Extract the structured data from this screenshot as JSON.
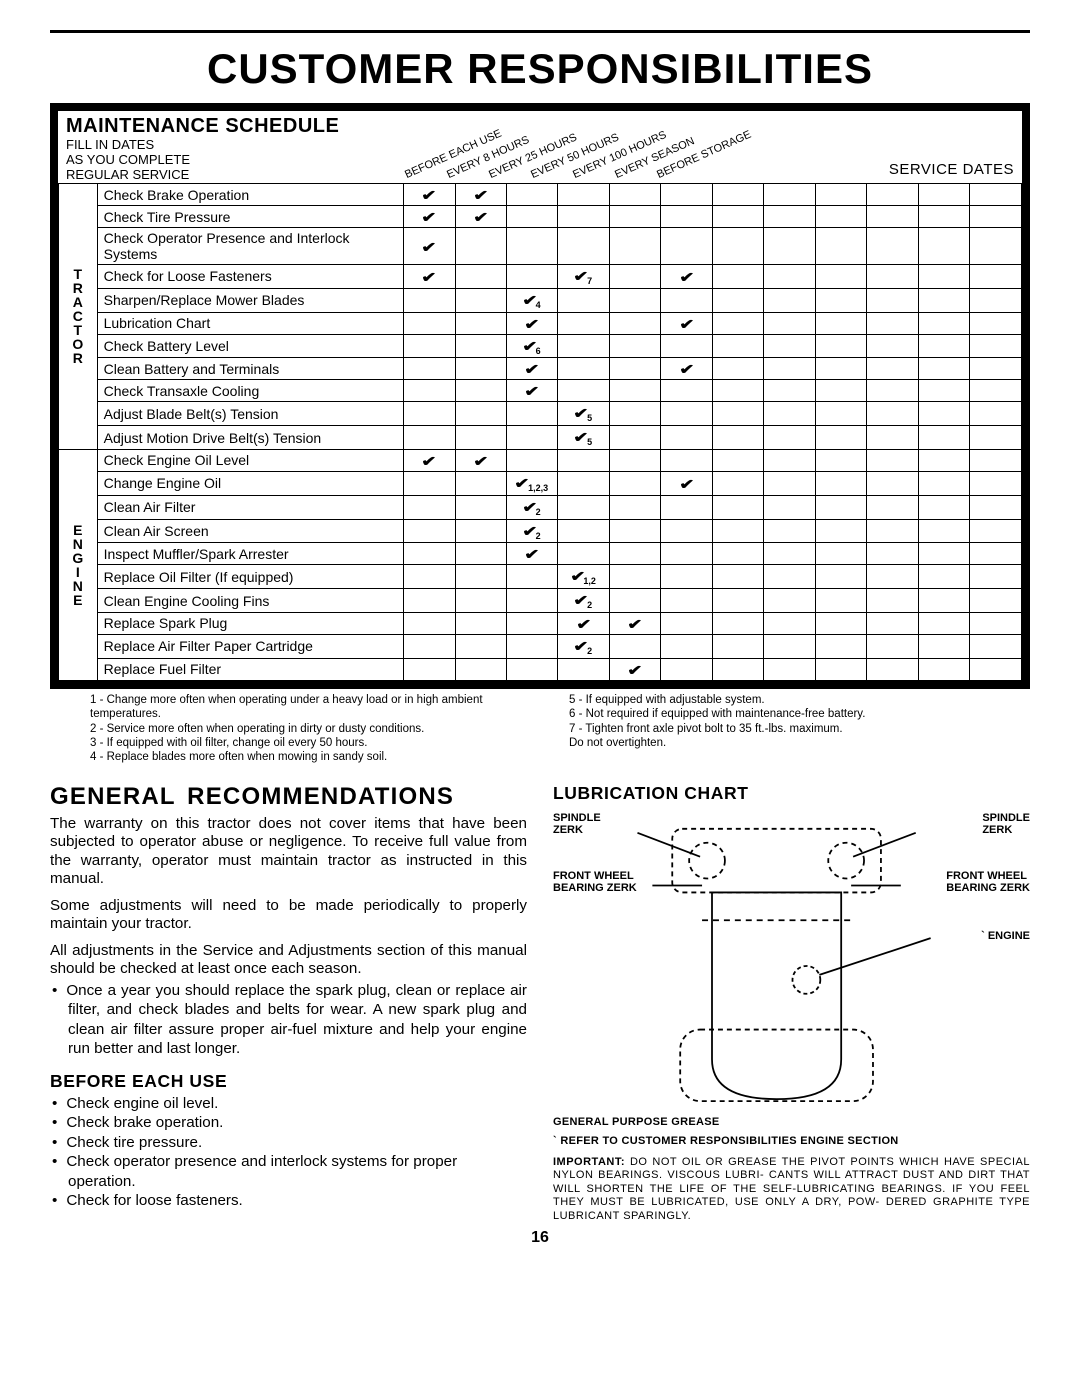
{
  "page": {
    "title": "CUSTOMER RESPONSIBILITIES",
    "number": "16"
  },
  "schedule": {
    "title": "MAINTENANCE SCHEDULE",
    "sub1": "FILL IN DATES",
    "sub2": "AS YOU COMPLETE",
    "sub3": "REGULAR SERVICE",
    "service_dates": "SERVICE DATES",
    "columns": [
      "BEFORE EACH USE",
      "EVERY 8 HOURS",
      "EVERY 25 HOURS",
      "EVERY 50 HOURS",
      "EVERY 100 HOURS",
      "EVERY SEASON",
      "BEFORE STORAGE"
    ],
    "categories": [
      {
        "label": "TRACTOR",
        "rows": [
          {
            "task": "Check Brake Operation",
            "marks": [
              "✔",
              "✔",
              "",
              "",
              "",
              "",
              ""
            ],
            "sub": [
              "",
              "",
              "",
              "",
              "",
              "",
              ""
            ]
          },
          {
            "task": "Check Tire Pressure",
            "marks": [
              "✔",
              "✔",
              "",
              "",
              "",
              "",
              ""
            ],
            "sub": [
              "",
              "",
              "",
              "",
              "",
              "",
              ""
            ]
          },
          {
            "task": "Check Operator Presence and Interlock Systems",
            "marks": [
              "✔",
              "",
              "",
              "",
              "",
              "",
              ""
            ],
            "sub": [
              "",
              "",
              "",
              "",
              "",
              "",
              ""
            ]
          },
          {
            "task": "Check for Loose Fasteners",
            "marks": [
              "✔",
              "",
              "",
              "✔",
              "",
              "✔",
              ""
            ],
            "sub": [
              "",
              "",
              "",
              "7",
              "",
              "",
              ""
            ]
          },
          {
            "task": "Sharpen/Replace Mower Blades",
            "marks": [
              "",
              "",
              "✔",
              "",
              "",
              "",
              ""
            ],
            "sub": [
              "",
              "",
              "4",
              "",
              "",
              "",
              ""
            ]
          },
          {
            "task": "Lubrication Chart",
            "marks": [
              "",
              "",
              "✔",
              "",
              "",
              "✔",
              ""
            ],
            "sub": [
              "",
              "",
              "",
              "",
              "",
              "",
              ""
            ]
          },
          {
            "task": "Check Battery Level",
            "marks": [
              "",
              "",
              "✔",
              "",
              "",
              "",
              ""
            ],
            "sub": [
              "",
              "",
              "6",
              "",
              "",
              "",
              ""
            ]
          },
          {
            "task": "Clean Battery and Terminals",
            "marks": [
              "",
              "",
              "✔",
              "",
              "",
              "✔",
              ""
            ],
            "sub": [
              "",
              "",
              "",
              "",
              "",
              "",
              ""
            ]
          },
          {
            "task": "Check Transaxle Cooling",
            "marks": [
              "",
              "",
              "✔",
              "",
              "",
              "",
              ""
            ],
            "sub": [
              "",
              "",
              "",
              "",
              "",
              "",
              ""
            ]
          },
          {
            "task": "Adjust Blade Belt(s) Tension",
            "marks": [
              "",
              "",
              "",
              "✔",
              "",
              "",
              ""
            ],
            "sub": [
              "",
              "",
              "",
              "5",
              "",
              "",
              ""
            ]
          },
          {
            "task": "Adjust Motion Drive Belt(s) Tension",
            "marks": [
              "",
              "",
              "",
              "✔",
              "",
              "",
              ""
            ],
            "sub": [
              "",
              "",
              "",
              "5",
              "",
              "",
              ""
            ]
          }
        ]
      },
      {
        "label": "ENGINE",
        "rows": [
          {
            "task": "Check Engine Oil Level",
            "marks": [
              "✔",
              "✔",
              "",
              "",
              "",
              "",
              ""
            ],
            "sub": [
              "",
              "",
              "",
              "",
              "",
              "",
              ""
            ]
          },
          {
            "task": "Change Engine Oil",
            "marks": [
              "",
              "",
              "✔",
              "",
              "",
              "✔",
              ""
            ],
            "sub": [
              "",
              "",
              "1,2,3",
              "",
              "",
              "",
              ""
            ]
          },
          {
            "task": "Clean Air Filter",
            "marks": [
              "",
              "",
              "✔",
              "",
              "",
              "",
              ""
            ],
            "sub": [
              "",
              "",
              "2",
              "",
              "",
              "",
              ""
            ]
          },
          {
            "task": "Clean Air Screen",
            "marks": [
              "",
              "",
              "✔",
              "",
              "",
              "",
              ""
            ],
            "sub": [
              "",
              "",
              "2",
              "",
              "",
              "",
              ""
            ]
          },
          {
            "task": "Inspect Muffler/Spark Arrester",
            "marks": [
              "",
              "",
              "✔",
              "",
              "",
              "",
              ""
            ],
            "sub": [
              "",
              "",
              "",
              "",
              "",
              "",
              ""
            ]
          },
          {
            "task": "Replace Oil Filter (If equipped)",
            "marks": [
              "",
              "",
              "",
              "✔",
              "",
              "",
              ""
            ],
            "sub": [
              "",
              "",
              "",
              "1,2",
              "",
              "",
              ""
            ]
          },
          {
            "task": "Clean Engine Cooling Fins",
            "marks": [
              "",
              "",
              "",
              "✔",
              "",
              "",
              ""
            ],
            "sub": [
              "",
              "",
              "",
              "2",
              "",
              "",
              ""
            ]
          },
          {
            "task": "Replace Spark Plug",
            "marks": [
              "",
              "",
              "",
              "✔",
              "✔",
              "",
              ""
            ],
            "sub": [
              "",
              "",
              "",
              "",
              "",
              "",
              ""
            ]
          },
          {
            "task": "Replace Air Filter Paper Cartridge",
            "marks": [
              "",
              "",
              "",
              "✔",
              "",
              "",
              ""
            ],
            "sub": [
              "",
              "",
              "",
              "2",
              "",
              "",
              ""
            ]
          },
          {
            "task": "Replace Fuel Filter",
            "marks": [
              "",
              "",
              "",
              "",
              "✔",
              "",
              ""
            ],
            "sub": [
              "",
              "",
              "",
              "",
              "",
              "",
              ""
            ]
          }
        ]
      }
    ]
  },
  "footnotes": {
    "left": [
      "1 - Change more often when operating under a heavy load or in high ambient temperatures.",
      "2 - Service more often when operating in dirty or dusty conditions.",
      "3 - If equipped with oil filter, change oil every 50 hours.",
      "4 - Replace blades more often when mowing in sandy soil."
    ],
    "right": [
      "5 - If equipped with adjustable system.",
      "6 - Not required if equipped with maintenance-free battery.",
      "7 - Tighten front axle pivot bolt to 35 ft.-lbs. maximum.",
      "     Do not overtighten."
    ]
  },
  "general": {
    "title": "GENERAL  RECOMMENDATIONS",
    "p1": "The warranty on this tractor does not cover items that have been subjected to operator abuse or negligence.  To receive full value from the warranty, operator must maintain tractor as instructed in this manual.",
    "p2": "Some adjustments will need to be made periodically to properly maintain your tractor.",
    "p3": "All adjustments in the Service and Adjustments section of this manual should be checked at least once each season.",
    "bullet": "Once a year you should replace the spark plug, clean or replace air filter, and check blades and belts for wear.  A new spark plug and clean air filter assure proper air-fuel mixture and help your engine run better and last longer."
  },
  "before": {
    "title": "BEFORE EACH USE",
    "items": [
      "Check engine oil level.",
      "Check brake operation.",
      "Check tire pressure.",
      "Check operator presence and interlock systems for proper operation.",
      "Check for loose fasteners."
    ]
  },
  "lube": {
    "title": "LUBRICATION  CHART",
    "labels": {
      "spin_l": "SPINDLE\nZERK",
      "spin_r": "SPINDLE\nZERK",
      "fw_l": "FRONT  WHEEL\nBEARING  ZERK",
      "fw_r": "FRONT  WHEEL\nBEARING  ZERK",
      "engine": "ENGINE"
    },
    "note1": "GENERAL  PURPOSE  GREASE",
    "note2": "` REFER  TO  CUSTOMER  RESPONSIBILITIES   ENGINE SECTION",
    "important_label": "IMPORTANT:",
    "important": "DO NOT OIL OR GREASE THE PIVOT POINTS WHICH HAVE SPECIAL NYLON BEARINGS.  VISCOUS LUBRI- CANTS WILL ATTRACT DUST AND DIRT THAT WILL SHORTEN THE LIFE OF THE SELF-LUBRICATING BEARINGS.  IF YOU FEEL THEY MUST BE LUBRICATED, USE ONLY A DRY, POW- DERED GRAPHITE TYPE LUBRICANT SPARINGLY."
  },
  "style": {
    "page_bg": "#ffffff",
    "text_color": "#000000",
    "border_color": "#000000",
    "table_border_width": 1,
    "outer_border_width": 8
  }
}
